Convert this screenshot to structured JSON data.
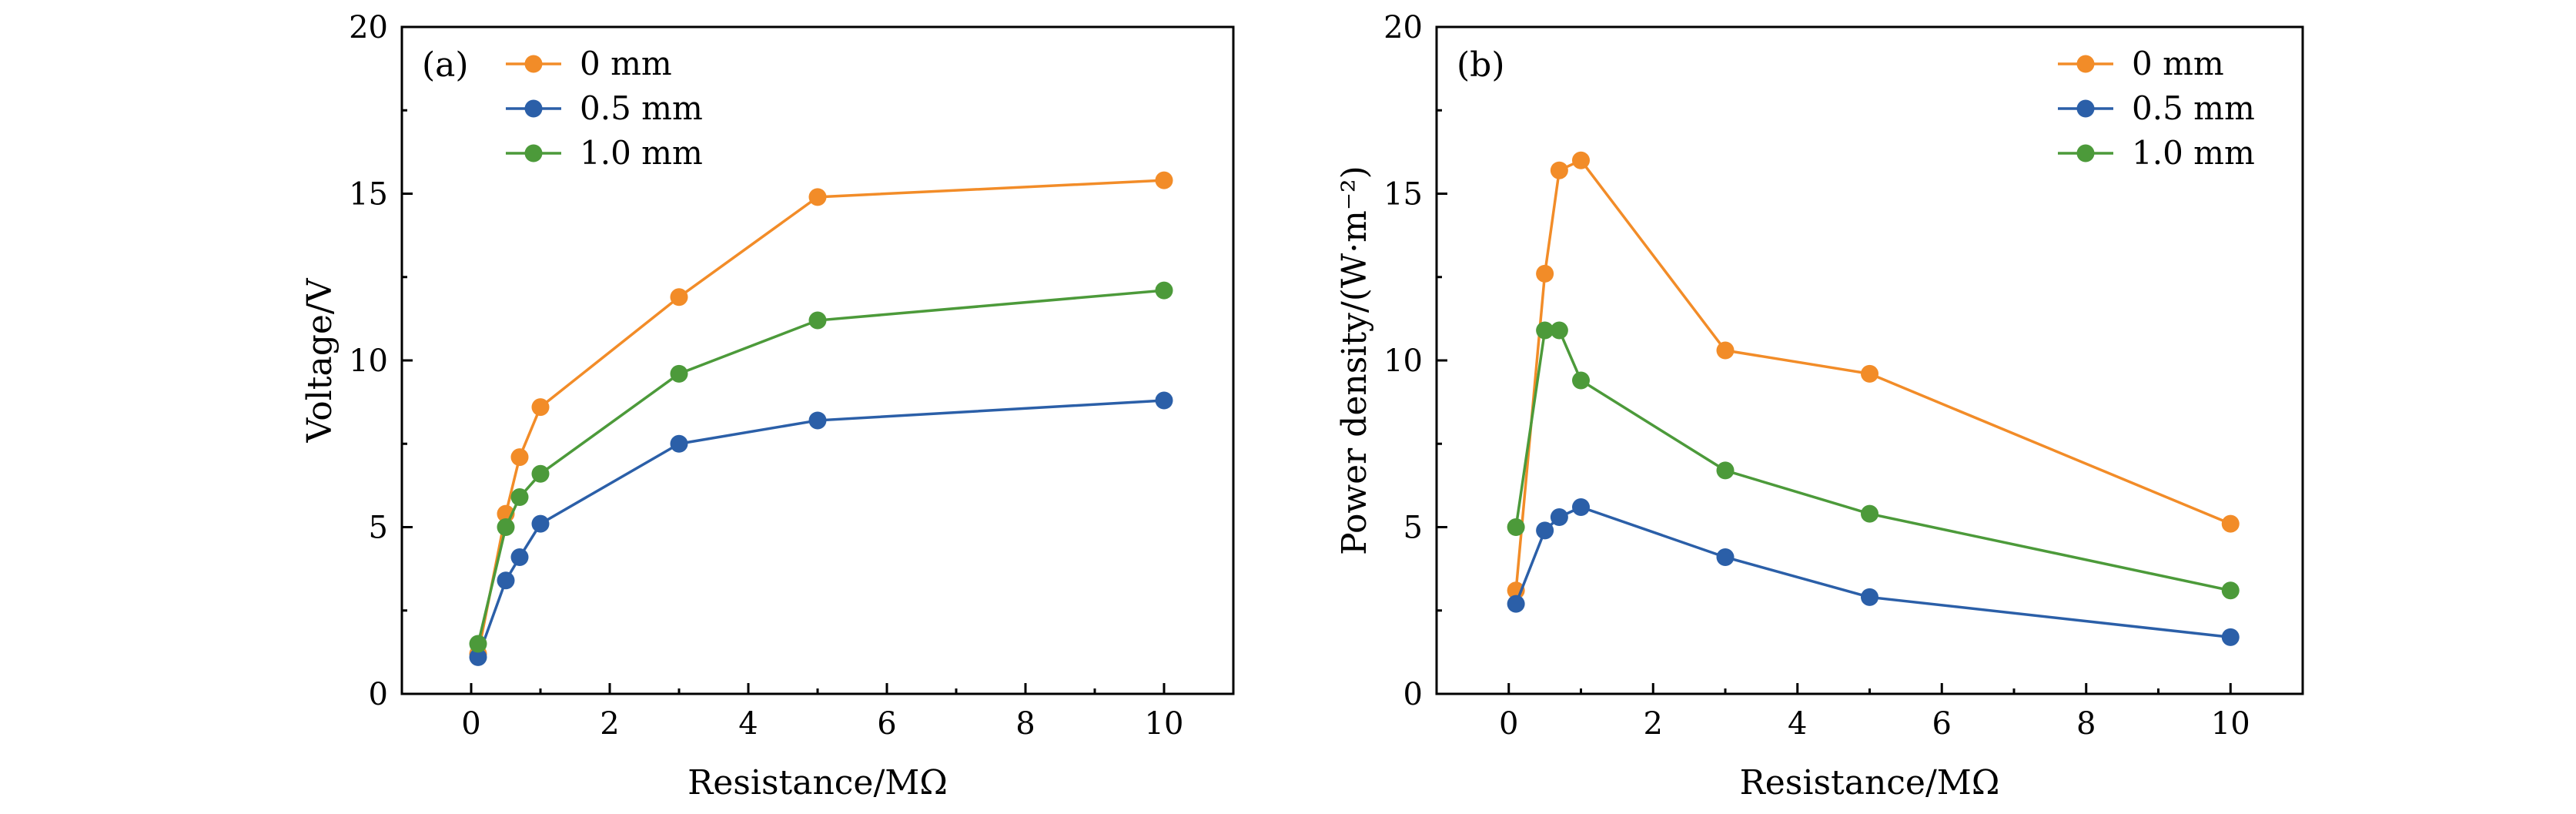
{
  "chart_data": [
    {
      "type": "line",
      "panel_label": "(a)",
      "xlabel": "Resistance/MΩ",
      "ylabel": "Voltage/V",
      "xlim": [
        -1,
        11
      ],
      "ylim": [
        0,
        20
      ],
      "xticks": [
        0,
        2,
        4,
        6,
        8,
        10
      ],
      "yticks": [
        0,
        5,
        10,
        15,
        20
      ],
      "legend_position": "top-left",
      "series": [
        {
          "name": "0 mm",
          "color": "#F28C28",
          "x": [
            0.1,
            0.5,
            0.7,
            1,
            3,
            5,
            10
          ],
          "y": [
            1.2,
            5.4,
            7.1,
            8.6,
            11.9,
            14.9,
            15.4
          ]
        },
        {
          "name": "0.5 mm",
          "color": "#2B5FA8",
          "x": [
            0.1,
            0.5,
            0.7,
            1,
            3,
            5,
            10
          ],
          "y": [
            1.1,
            3.4,
            4.1,
            5.1,
            7.5,
            8.2,
            8.8
          ]
        },
        {
          "name": "1.0 mm",
          "color": "#4C9A3A",
          "x": [
            0.1,
            0.5,
            0.7,
            1,
            3,
            5,
            10
          ],
          "y": [
            1.5,
            5.0,
            5.9,
            6.6,
            9.6,
            11.2,
            12.1
          ]
        }
      ]
    },
    {
      "type": "line",
      "panel_label": "(b)",
      "xlabel": "Resistance/MΩ",
      "ylabel": "Power density/(W·m⁻²)",
      "xlim": [
        -1,
        11
      ],
      "ylim": [
        0,
        20
      ],
      "xticks": [
        0,
        2,
        4,
        6,
        8,
        10
      ],
      "yticks": [
        0,
        5,
        10,
        15,
        20
      ],
      "legend_position": "top-right",
      "series": [
        {
          "name": "0 mm",
          "color": "#F28C28",
          "x": [
            0.1,
            0.5,
            0.7,
            1,
            3,
            5,
            10
          ],
          "y": [
            3.1,
            12.6,
            15.7,
            16.0,
            10.3,
            9.6,
            5.1
          ]
        },
        {
          "name": "0.5 mm",
          "color": "#2B5FA8",
          "x": [
            0.1,
            0.5,
            0.7,
            1,
            3,
            5,
            10
          ],
          "y": [
            2.7,
            4.9,
            5.3,
            5.6,
            4.1,
            2.9,
            1.7
          ]
        },
        {
          "name": "1.0 mm",
          "color": "#4C9A3A",
          "x": [
            0.1,
            0.5,
            0.7,
            1,
            3,
            5,
            10
          ],
          "y": [
            5.0,
            10.9,
            10.9,
            9.4,
            6.7,
            5.4,
            3.1
          ]
        }
      ]
    }
  ]
}
